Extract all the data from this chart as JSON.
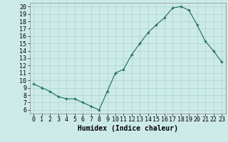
{
  "x": [
    0,
    1,
    2,
    3,
    4,
    5,
    6,
    7,
    8,
    9,
    10,
    11,
    12,
    13,
    14,
    15,
    16,
    17,
    18,
    19,
    20,
    21,
    22,
    23
  ],
  "y": [
    9.5,
    9.0,
    8.5,
    7.8,
    7.5,
    7.5,
    7.0,
    6.5,
    6.0,
    8.5,
    11.0,
    11.5,
    13.5,
    15.0,
    16.5,
    17.5,
    18.5,
    19.8,
    20.0,
    19.5,
    17.5,
    15.3,
    14.0,
    12.5
  ],
  "xlabel": "Humidex (Indice chaleur)",
  "xlim": [
    -0.5,
    23.5
  ],
  "ylim": [
    5.5,
    20.5
  ],
  "yticks": [
    6,
    7,
    8,
    9,
    10,
    11,
    12,
    13,
    14,
    15,
    16,
    17,
    18,
    19,
    20
  ],
  "xticks": [
    0,
    1,
    2,
    3,
    4,
    5,
    6,
    7,
    8,
    9,
    10,
    11,
    12,
    13,
    14,
    15,
    16,
    17,
    18,
    19,
    20,
    21,
    22,
    23
  ],
  "line_color": "#1a6b5a",
  "marker_color": "#1a6b5a",
  "bg_color": "#cceae8",
  "grid_color": "#aad4d0",
  "xlabel_fontsize": 7,
  "tick_fontsize": 6
}
